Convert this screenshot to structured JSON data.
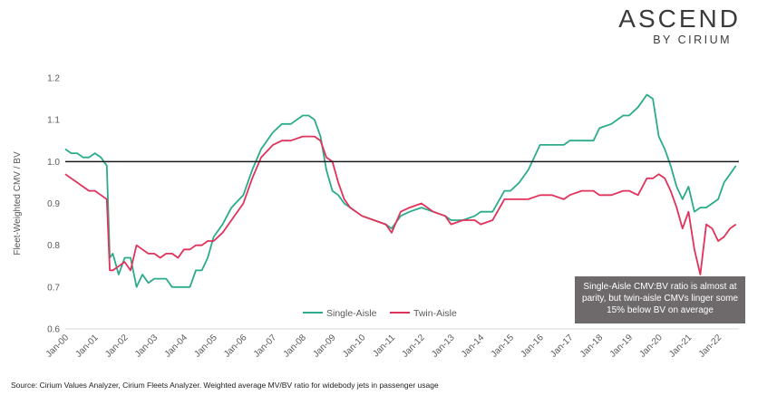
{
  "brand": {
    "main": "ASCEND",
    "sub": "BY CIRIUM"
  },
  "callout": "Single-Aisle CMV:BV ratio is almost at parity, but twin-aisle CMVs linger some 15% below BV on average",
  "source": "Source: Cirium Values Analyzer, Cirium Fleets Analyzer. Weighted average MV/BV ratio for widebody jets in passenger usage",
  "colors": {
    "single_aisle": "#2bab8b",
    "twin_aisle": "#e0325a",
    "reference": "#1a1a1a"
  },
  "chart_data": {
    "type": "line",
    "title": "",
    "ylabel": "Fleet-Weighted CMV / BV",
    "xlabel": "",
    "ylim": [
      0.6,
      1.2
    ],
    "yticks": [
      "0.6",
      "0.7",
      "0.8",
      "0.9",
      "1.0",
      "1.1",
      "1.2"
    ],
    "xlim": [
      2000.0,
      2022.7
    ],
    "xticks": [
      "Jan-00",
      "Jan-01",
      "Jan-02",
      "Jan-03",
      "Jan-04",
      "Jan-05",
      "Jan-06",
      "Jan-07",
      "Jan-08",
      "Jan-09",
      "Jan-10",
      "Jan-11",
      "Jan-12",
      "Jan-13",
      "Jan-14",
      "Jan-15",
      "Jan-16",
      "Jan-17",
      "Jan-18",
      "Jan-19",
      "Jan-20",
      "Jan-21",
      "Jan-22"
    ],
    "reference_line": 1.0,
    "legend": "bottom-center",
    "grid": false,
    "series": [
      {
        "name": "Single-Aisle",
        "x": [
          2000.0,
          2000.2,
          2000.4,
          2000.6,
          2000.8,
          2001.0,
          2001.2,
          2001.4,
          2001.5,
          2001.6,
          2001.8,
          2002.0,
          2002.2,
          2002.4,
          2002.6,
          2002.8,
          2003.0,
          2003.2,
          2003.4,
          2003.6,
          2003.8,
          2004.0,
          2004.2,
          2004.4,
          2004.6,
          2004.8,
          2005.0,
          2005.3,
          2005.6,
          2006.0,
          2006.3,
          2006.6,
          2007.0,
          2007.3,
          2007.6,
          2008.0,
          2008.2,
          2008.4,
          2008.6,
          2008.8,
          2009.0,
          2009.2,
          2009.4,
          2009.6,
          2010.0,
          2010.4,
          2010.8,
          2011.0,
          2011.3,
          2011.6,
          2012.0,
          2012.4,
          2012.8,
          2013.0,
          2013.4,
          2013.8,
          2014.0,
          2014.4,
          2014.8,
          2015.0,
          2015.3,
          2015.6,
          2016.0,
          2016.4,
          2016.8,
          2017.0,
          2017.4,
          2017.8,
          2018.0,
          2018.4,
          2018.8,
          2019.0,
          2019.3,
          2019.6,
          2019.8,
          2020.0,
          2020.2,
          2020.4,
          2020.6,
          2020.8,
          2021.0,
          2021.2,
          2021.4,
          2021.6,
          2021.8,
          2022.0,
          2022.2,
          2022.4,
          2022.6
        ],
        "values": [
          1.03,
          1.02,
          1.02,
          1.01,
          1.01,
          1.02,
          1.01,
          0.99,
          0.77,
          0.78,
          0.73,
          0.77,
          0.77,
          0.7,
          0.73,
          0.71,
          0.72,
          0.72,
          0.72,
          0.7,
          0.7,
          0.7,
          0.7,
          0.74,
          0.74,
          0.77,
          0.82,
          0.85,
          0.89,
          0.92,
          0.98,
          1.03,
          1.07,
          1.09,
          1.09,
          1.11,
          1.11,
          1.1,
          1.06,
          0.98,
          0.93,
          0.92,
          0.9,
          0.89,
          0.87,
          0.86,
          0.85,
          0.84,
          0.87,
          0.88,
          0.89,
          0.88,
          0.87,
          0.86,
          0.86,
          0.87,
          0.88,
          0.88,
          0.93,
          0.93,
          0.95,
          0.98,
          1.04,
          1.04,
          1.04,
          1.05,
          1.05,
          1.05,
          1.08,
          1.09,
          1.11,
          1.11,
          1.13,
          1.16,
          1.15,
          1.06,
          1.03,
          0.99,
          0.94,
          0.91,
          0.94,
          0.88,
          0.89,
          0.89,
          0.9,
          0.91,
          0.95,
          0.97,
          0.99
        ]
      },
      {
        "name": "Twin-Aisle",
        "x": [
          2000.0,
          2000.2,
          2000.4,
          2000.6,
          2000.8,
          2001.0,
          2001.2,
          2001.4,
          2001.5,
          2001.6,
          2001.8,
          2002.0,
          2002.2,
          2002.4,
          2002.6,
          2002.8,
          2003.0,
          2003.2,
          2003.4,
          2003.6,
          2003.8,
          2004.0,
          2004.2,
          2004.4,
          2004.6,
          2004.8,
          2005.0,
          2005.3,
          2005.6,
          2006.0,
          2006.3,
          2006.6,
          2007.0,
          2007.3,
          2007.6,
          2008.0,
          2008.2,
          2008.4,
          2008.6,
          2008.8,
          2009.0,
          2009.2,
          2009.4,
          2009.6,
          2010.0,
          2010.4,
          2010.8,
          2011.0,
          2011.3,
          2011.6,
          2012.0,
          2012.4,
          2012.8,
          2013.0,
          2013.4,
          2013.8,
          2014.0,
          2014.4,
          2014.8,
          2015.0,
          2015.3,
          2015.6,
          2016.0,
          2016.4,
          2016.8,
          2017.0,
          2017.4,
          2017.8,
          2018.0,
          2018.4,
          2018.8,
          2019.0,
          2019.3,
          2019.6,
          2019.8,
          2020.0,
          2020.2,
          2020.4,
          2020.6,
          2020.8,
          2021.0,
          2021.2,
          2021.4,
          2021.6,
          2021.8,
          2022.0,
          2022.2,
          2022.4,
          2022.6
        ],
        "values": [
          0.97,
          0.96,
          0.95,
          0.94,
          0.93,
          0.93,
          0.92,
          0.91,
          0.74,
          0.74,
          0.75,
          0.76,
          0.74,
          0.8,
          0.79,
          0.78,
          0.78,
          0.77,
          0.78,
          0.78,
          0.77,
          0.79,
          0.79,
          0.8,
          0.8,
          0.81,
          0.81,
          0.83,
          0.86,
          0.9,
          0.96,
          1.01,
          1.04,
          1.05,
          1.05,
          1.06,
          1.06,
          1.06,
          1.05,
          1.01,
          1.0,
          0.95,
          0.91,
          0.89,
          0.87,
          0.86,
          0.85,
          0.83,
          0.88,
          0.89,
          0.9,
          0.88,
          0.87,
          0.85,
          0.86,
          0.86,
          0.85,
          0.86,
          0.91,
          0.91,
          0.91,
          0.91,
          0.92,
          0.92,
          0.91,
          0.92,
          0.93,
          0.93,
          0.92,
          0.92,
          0.93,
          0.93,
          0.92,
          0.96,
          0.96,
          0.97,
          0.96,
          0.93,
          0.89,
          0.84,
          0.88,
          0.79,
          0.73,
          0.85,
          0.84,
          0.81,
          0.82,
          0.84,
          0.85
        ]
      }
    ]
  }
}
